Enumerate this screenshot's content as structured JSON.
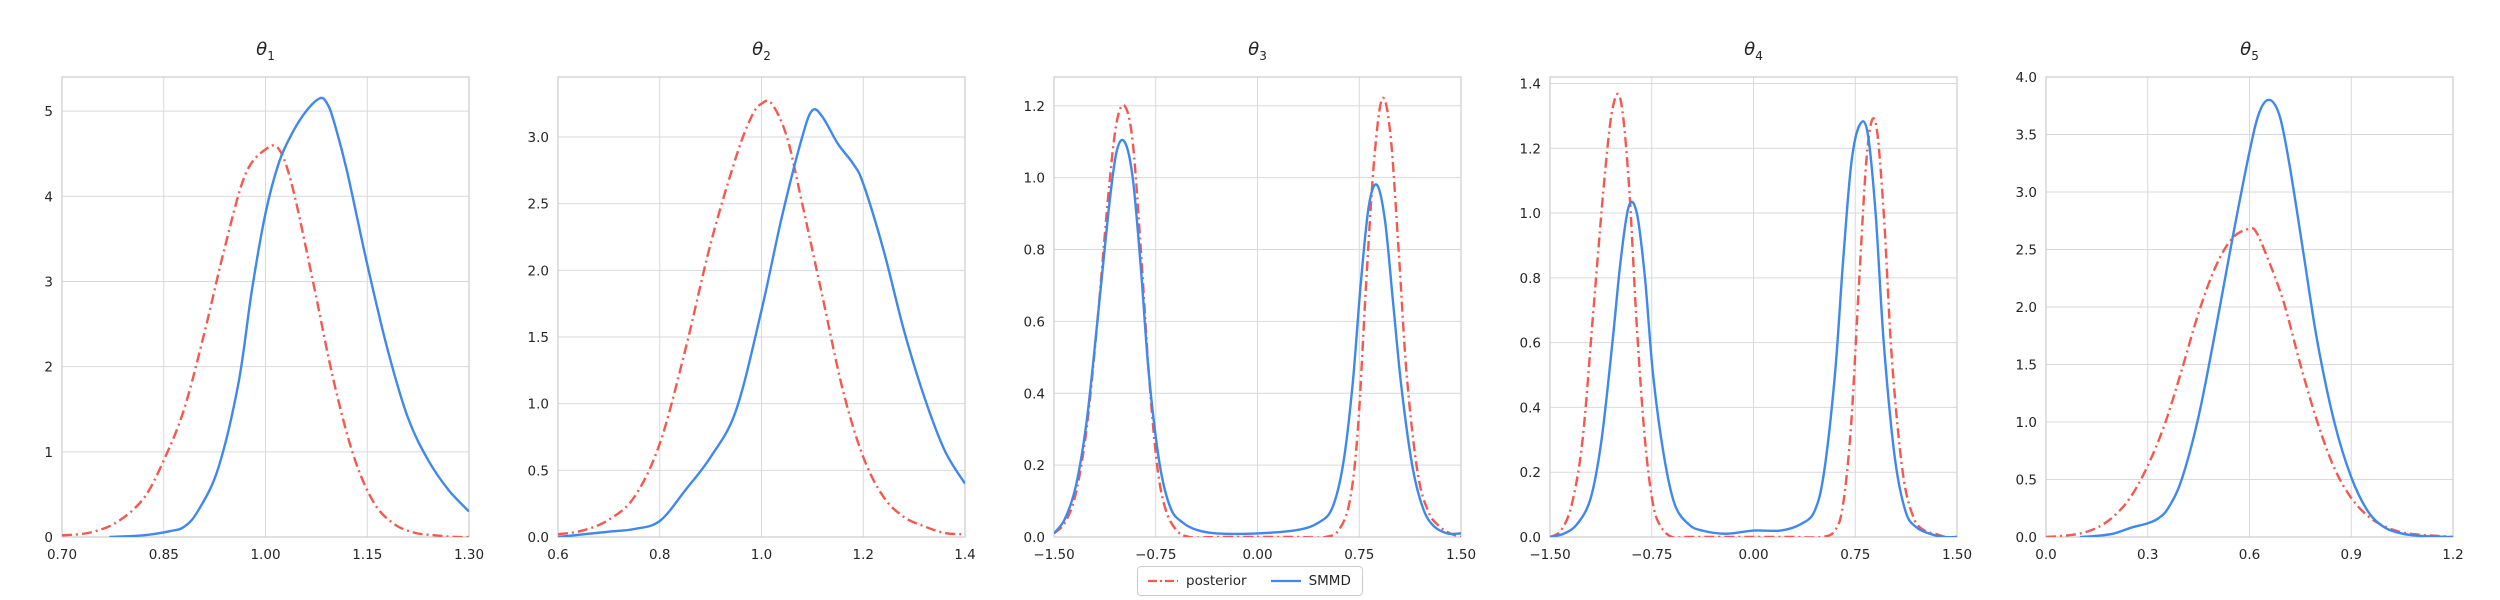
{
  "colors": {
    "posterior": "#f4584f",
    "smmd": "#3f88ed",
    "grid": "#d9d9d9",
    "axis": "#cccccc",
    "text": "#262626"
  },
  "legend": {
    "position": "bottom-center",
    "items": [
      {
        "label": "posterior",
        "style": "dash-dot",
        "color": "#f4584f",
        "icon": "dash-dot-line-icon"
      },
      {
        "label": "SMMD",
        "style": "solid",
        "color": "#3f88ed",
        "icon": "solid-line-icon"
      }
    ]
  },
  "chart_data": [
    {
      "type": "line",
      "title": "θ1",
      "title_base": "θ",
      "title_sub": "1",
      "grid": true,
      "xlim": [
        0.7,
        1.3
      ],
      "ylim": [
        0,
        5.4
      ],
      "xticks": [
        0.7,
        0.85,
        1.0,
        1.15,
        1.3
      ],
      "xtick_labels": [
        "0.70",
        "0.85",
        "1.00",
        "1.15",
        "1.30"
      ],
      "yticks": [
        0,
        1,
        2,
        3,
        4,
        5
      ],
      "ytick_labels": [
        "0",
        "1",
        "2",
        "3",
        "4",
        "5"
      ],
      "series": [
        {
          "name": "posterior",
          "x": [
            0.7,
            0.74,
            0.78,
            0.82,
            0.85,
            0.88,
            0.91,
            0.94,
            0.97,
            1.0,
            1.02,
            1.04,
            1.07,
            1.1,
            1.13,
            1.16,
            1.19,
            1.22,
            1.25,
            1.28,
            1.3
          ],
          "y": [
            0.02,
            0.05,
            0.17,
            0.45,
            0.9,
            1.5,
            2.4,
            3.4,
            4.25,
            4.55,
            4.55,
            4.1,
            3.0,
            1.85,
            0.95,
            0.4,
            0.15,
            0.05,
            0.02,
            0.0,
            0.0
          ]
        },
        {
          "name": "SMMD",
          "x": [
            0.77,
            0.82,
            0.86,
            0.88,
            0.9,
            0.93,
            0.96,
            0.98,
            1.0,
            1.02,
            1.04,
            1.06,
            1.08,
            1.09,
            1.1,
            1.12,
            1.15,
            1.18,
            1.21,
            1.24,
            1.27,
            1.3
          ],
          "y": [
            0.0,
            0.02,
            0.07,
            0.12,
            0.3,
            0.8,
            1.8,
            2.9,
            3.8,
            4.4,
            4.75,
            5.0,
            5.15,
            5.1,
            4.9,
            4.3,
            3.2,
            2.2,
            1.4,
            0.9,
            0.55,
            0.3
          ]
        }
      ]
    },
    {
      "type": "line",
      "title": "θ2",
      "title_base": "θ",
      "title_sub": "2",
      "grid": true,
      "xlim": [
        0.6,
        1.4
      ],
      "ylim": [
        0,
        3.45
      ],
      "xticks": [
        0.6,
        0.8,
        1.0,
        1.2,
        1.4
      ],
      "xtick_labels": [
        "0.6",
        "0.8",
        "1.0",
        "1.2",
        "1.4"
      ],
      "yticks": [
        0,
        0.5,
        1.0,
        1.5,
        2.0,
        2.5,
        3.0
      ],
      "ytick_labels": [
        "0.0",
        "0.5",
        "1.0",
        "1.5",
        "2.0",
        "2.5",
        "3.0"
      ],
      "series": [
        {
          "name": "posterior",
          "x": [
            0.6,
            0.65,
            0.7,
            0.75,
            0.8,
            0.85,
            0.9,
            0.95,
            0.98,
            1.0,
            1.02,
            1.05,
            1.08,
            1.12,
            1.16,
            1.2,
            1.24,
            1.28,
            1.32,
            1.36,
            1.4
          ],
          "y": [
            0.02,
            0.05,
            0.13,
            0.3,
            0.7,
            1.4,
            2.2,
            2.85,
            3.15,
            3.25,
            3.25,
            3.0,
            2.5,
            1.8,
            1.1,
            0.6,
            0.3,
            0.15,
            0.08,
            0.03,
            0.02
          ]
        },
        {
          "name": "SMMD",
          "x": [
            0.6,
            0.65,
            0.7,
            0.75,
            0.8,
            0.85,
            0.9,
            0.95,
            1.0,
            1.04,
            1.08,
            1.1,
            1.12,
            1.15,
            1.18,
            1.2,
            1.24,
            1.28,
            1.32,
            1.36,
            1.4
          ],
          "y": [
            0.0,
            0.02,
            0.04,
            0.06,
            0.12,
            0.35,
            0.6,
            0.95,
            1.7,
            2.4,
            3.0,
            3.2,
            3.15,
            2.95,
            2.8,
            2.65,
            2.15,
            1.55,
            1.05,
            0.65,
            0.4
          ]
        }
      ]
    },
    {
      "type": "line",
      "title": "θ3",
      "title_base": "θ",
      "title_sub": "3",
      "grid": true,
      "xlim": [
        -1.5,
        1.5
      ],
      "ylim": [
        0,
        1.28
      ],
      "xticks": [
        -1.5,
        -0.75,
        0.0,
        0.75,
        1.5
      ],
      "xtick_labels": [
        "−1.50",
        "−0.75",
        "0.00",
        "0.75",
        "1.50"
      ],
      "yticks": [
        0,
        0.2,
        0.4,
        0.6,
        0.8,
        1.0,
        1.2
      ],
      "ytick_labels": [
        "0.0",
        "0.2",
        "0.4",
        "0.6",
        "0.8",
        "1.0",
        "1.2"
      ],
      "series": [
        {
          "name": "posterior",
          "x": [
            -1.5,
            -1.42,
            -1.34,
            -1.26,
            -1.18,
            -1.1,
            -1.04,
            -0.98,
            -0.92,
            -0.86,
            -0.8,
            -0.74,
            -0.68,
            -0.6,
            -0.5,
            -0.3,
            0.0,
            0.3,
            0.5,
            0.6,
            0.68,
            0.74,
            0.8,
            0.86,
            0.92,
            0.98,
            1.04,
            1.1,
            1.18,
            1.26,
            1.34,
            1.42,
            1.5
          ],
          "y": [
            0.01,
            0.04,
            0.12,
            0.3,
            0.6,
            0.95,
            1.15,
            1.2,
            1.1,
            0.8,
            0.45,
            0.2,
            0.08,
            0.02,
            0.0,
            0.0,
            0.0,
            0.0,
            0.0,
            0.02,
            0.1,
            0.3,
            0.7,
            1.05,
            1.22,
            1.12,
            0.8,
            0.45,
            0.18,
            0.07,
            0.03,
            0.01,
            0.0
          ]
        },
        {
          "name": "SMMD",
          "x": [
            -1.5,
            -1.42,
            -1.34,
            -1.26,
            -1.18,
            -1.1,
            -1.04,
            -0.98,
            -0.92,
            -0.86,
            -0.8,
            -0.72,
            -0.64,
            -0.55,
            -0.45,
            -0.3,
            0.0,
            0.3,
            0.45,
            0.55,
            0.63,
            0.7,
            0.76,
            0.82,
            0.88,
            0.94,
            1.0,
            1.06,
            1.14,
            1.22,
            1.3,
            1.4,
            1.5
          ],
          "y": [
            0.01,
            0.05,
            0.14,
            0.32,
            0.6,
            0.9,
            1.07,
            1.1,
            1.0,
            0.75,
            0.45,
            0.2,
            0.08,
            0.04,
            0.02,
            0.01,
            0.01,
            0.02,
            0.04,
            0.08,
            0.2,
            0.42,
            0.7,
            0.92,
            0.98,
            0.88,
            0.65,
            0.42,
            0.2,
            0.08,
            0.03,
            0.01,
            0.01
          ]
        }
      ]
    },
    {
      "type": "line",
      "title": "θ4",
      "title_base": "θ",
      "title_sub": "4",
      "grid": true,
      "xlim": [
        -1.5,
        1.5
      ],
      "ylim": [
        0,
        1.42
      ],
      "xticks": [
        -1.5,
        -0.75,
        0.0,
        0.75,
        1.5
      ],
      "xtick_labels": [
        "−1.50",
        "−0.75",
        "0.00",
        "0.75",
        "1.50"
      ],
      "yticks": [
        0,
        0.2,
        0.4,
        0.6,
        0.8,
        1.0,
        1.2,
        1.4
      ],
      "ytick_labels": [
        "0.0",
        "0.2",
        "0.4",
        "0.6",
        "0.8",
        "1.0",
        "1.2",
        "1.4"
      ],
      "series": [
        {
          "name": "posterior",
          "x": [
            -1.5,
            -1.42,
            -1.34,
            -1.26,
            -1.18,
            -1.1,
            -1.04,
            -0.98,
            -0.92,
            -0.86,
            -0.8,
            -0.74,
            -0.68,
            -0.6,
            -0.5,
            -0.3,
            0.0,
            0.3,
            0.5,
            0.6,
            0.66,
            0.72,
            0.78,
            0.84,
            0.9,
            0.96,
            1.02,
            1.1,
            1.18,
            1.26,
            1.34,
            1.42,
            1.5
          ],
          "y": [
            0.0,
            0.02,
            0.1,
            0.3,
            0.7,
            1.1,
            1.32,
            1.35,
            1.1,
            0.65,
            0.3,
            0.1,
            0.03,
            0.0,
            0.0,
            0.0,
            0.0,
            0.0,
            0.0,
            0.02,
            0.1,
            0.35,
            0.8,
            1.2,
            1.28,
            1.0,
            0.55,
            0.2,
            0.06,
            0.02,
            0.01,
            0.0,
            0.0
          ]
        },
        {
          "name": "SMMD",
          "x": [
            -1.5,
            -1.4,
            -1.3,
            -1.2,
            -1.12,
            -1.04,
            -0.98,
            -0.92,
            -0.86,
            -0.8,
            -0.74,
            -0.66,
            -0.58,
            -0.48,
            -0.38,
            -0.2,
            0.0,
            0.2,
            0.35,
            0.45,
            0.52,
            0.6,
            0.66,
            0.72,
            0.78,
            0.84,
            0.9,
            0.96,
            1.04,
            1.12,
            1.2,
            1.3,
            1.4,
            1.5
          ],
          "y": [
            0.0,
            0.01,
            0.04,
            0.12,
            0.3,
            0.6,
            0.85,
            1.02,
            1.0,
            0.8,
            0.5,
            0.25,
            0.1,
            0.04,
            0.02,
            0.01,
            0.02,
            0.02,
            0.04,
            0.08,
            0.2,
            0.5,
            0.85,
            1.15,
            1.27,
            1.25,
            1.0,
            0.6,
            0.25,
            0.08,
            0.03,
            0.01,
            0.0,
            0.0
          ]
        }
      ]
    },
    {
      "type": "line",
      "title": "θ5",
      "title_base": "θ",
      "title_sub": "5",
      "grid": true,
      "xlim": [
        0.0,
        1.2
      ],
      "ylim": [
        0,
        4.0
      ],
      "xticks": [
        0.0,
        0.3,
        0.6,
        0.9,
        1.2
      ],
      "xtick_labels": [
        "0.0",
        "0.3",
        "0.6",
        "0.9",
        "1.2"
      ],
      "yticks": [
        0,
        0.5,
        1.0,
        1.5,
        2.0,
        2.5,
        3.0,
        3.5,
        4.0
      ],
      "ytick_labels": [
        "0.0",
        "0.5",
        "1.0",
        "1.5",
        "2.0",
        "2.5",
        "3.0",
        "3.5",
        "4.0"
      ],
      "series": [
        {
          "name": "posterior",
          "x": [
            0.0,
            0.05,
            0.1,
            0.15,
            0.2,
            0.25,
            0.3,
            0.35,
            0.4,
            0.45,
            0.5,
            0.55,
            0.6,
            0.62,
            0.65,
            0.7,
            0.75,
            0.8,
            0.85,
            0.9,
            0.95,
            1.0,
            1.05,
            1.1,
            1.15,
            1.2
          ],
          "y": [
            0.0,
            0.01,
            0.03,
            0.08,
            0.18,
            0.35,
            0.62,
            0.98,
            1.45,
            1.95,
            2.35,
            2.6,
            2.68,
            2.65,
            2.45,
            2.05,
            1.5,
            1.0,
            0.6,
            0.34,
            0.18,
            0.09,
            0.04,
            0.02,
            0.01,
            0.0
          ]
        },
        {
          "name": "SMMD",
          "x": [
            0.1,
            0.15,
            0.2,
            0.25,
            0.3,
            0.33,
            0.36,
            0.4,
            0.45,
            0.5,
            0.55,
            0.6,
            0.63,
            0.66,
            0.69,
            0.72,
            0.76,
            0.8,
            0.85,
            0.9,
            0.95,
            1.0,
            1.05,
            1.1,
            1.2
          ],
          "y": [
            0.0,
            0.01,
            0.03,
            0.08,
            0.12,
            0.16,
            0.25,
            0.5,
            1.05,
            1.8,
            2.6,
            3.35,
            3.7,
            3.8,
            3.65,
            3.2,
            2.45,
            1.7,
            1.0,
            0.52,
            0.22,
            0.08,
            0.03,
            0.01,
            0.0
          ]
        }
      ]
    }
  ]
}
